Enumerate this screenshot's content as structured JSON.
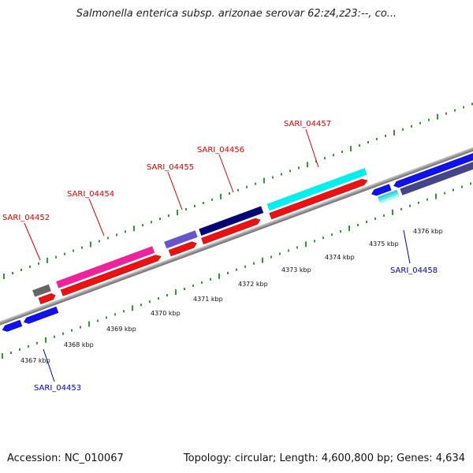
{
  "title": "Salmonella enterica subsp. arizonae serovar 62:z4,z23:--, co...",
  "footer": {
    "accession": "Accession: NC_010067",
    "summary": "Topology: circular; Length: 4,600,800 bp; Genes: 4,634"
  },
  "colors": {
    "forward_label": "#dd0000",
    "reverse_label": "#0000bb",
    "backbone": "#999999",
    "tick": "#339933"
  },
  "scale_labels": [
    "4367 kbp",
    "4368 kbp",
    "4369 kbp",
    "4370 kbp",
    "4371 kbp",
    "4372 kbp",
    "4373 kbp",
    "4374 kbp",
    "4375 kbp",
    "4376 kbp"
  ],
  "gene_labels": [
    {
      "name": "SARI_04452",
      "strand": "forward"
    },
    {
      "name": "SARI_04453",
      "strand": "reverse"
    },
    {
      "name": "SARI_04454",
      "strand": "forward"
    },
    {
      "name": "SARI_04455",
      "strand": "forward"
    },
    {
      "name": "SARI_04456",
      "strand": "forward"
    },
    {
      "name": "SARI_04457",
      "strand": "forward"
    },
    {
      "name": "SARI_04458",
      "strand": "reverse"
    }
  ]
}
